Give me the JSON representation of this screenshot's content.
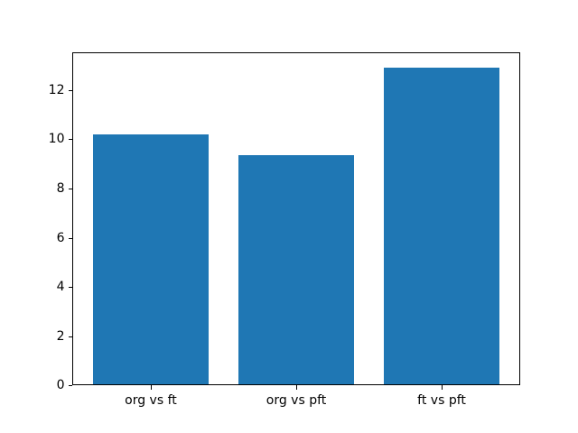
{
  "chart_data": {
    "type": "bar",
    "title": "",
    "xlabel": "",
    "ylabel": "",
    "categories": [
      "org vs ft",
      "org vs pft",
      "ft vs pft"
    ],
    "values": [
      10.2,
      9.35,
      12.9
    ],
    "bar_color": "#1f77b4",
    "spine_color": "#000000",
    "background_color": "#ffffff",
    "ylim": [
      0,
      13.55
    ],
    "xlim": [
      -0.54,
      2.54
    ],
    "bar_width": 0.8,
    "yticks": [
      0,
      2,
      4,
      6,
      8,
      10,
      12
    ],
    "ytick_labels": [
      "0",
      "2",
      "4",
      "6",
      "8",
      "10",
      "12"
    ],
    "grid": false,
    "legend": null
  }
}
